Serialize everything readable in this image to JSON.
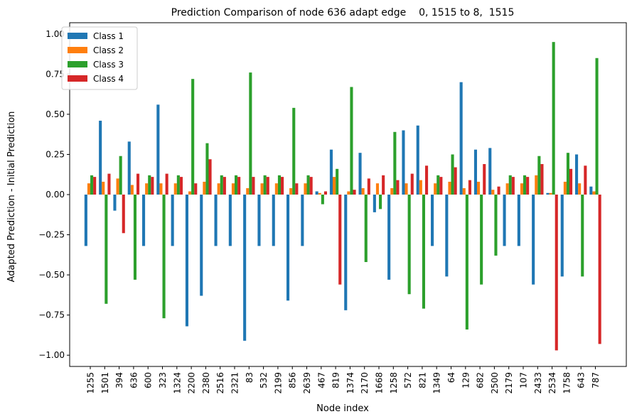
{
  "chart_data": {
    "type": "bar",
    "title": "Prediction Comparison of node 636 adapt edge    0, 1515 to 8,  1515",
    "xlabel": "Node index",
    "ylabel": "Adapted Prediction - Initial Prediction",
    "ylim": [
      -1.07,
      1.07
    ],
    "yticks": [
      "1.00",
      "0.75",
      "0.50",
      "0.25",
      "0.00",
      "−0.25",
      "−0.50",
      "−0.75",
      "−1.00"
    ],
    "ytick_values": [
      1.0,
      0.75,
      0.5,
      0.25,
      0.0,
      -0.25,
      -0.5,
      -0.75,
      -1.0
    ],
    "legend_position": "top-left",
    "categories": [
      "1255",
      "1501",
      "394",
      "636",
      "600",
      "323",
      "1324",
      "2200",
      "2380",
      "2516",
      "2321",
      "83",
      "532",
      "2199",
      "856",
      "2639",
      "467",
      "819",
      "1374",
      "2170",
      "1668",
      "1258",
      "572",
      "821",
      "1349",
      "64",
      "129",
      "682",
      "2500",
      "2179",
      "107",
      "2433",
      "2534",
      "1758",
      "643",
      "787"
    ],
    "series": [
      {
        "name": "Class 1",
        "color": "#1f77b4",
        "values": [
          -0.32,
          0.46,
          -0.1,
          0.33,
          -0.32,
          0.56,
          -0.32,
          -0.82,
          -0.63,
          -0.32,
          -0.32,
          -0.91,
          -0.32,
          -0.32,
          -0.66,
          -0.32,
          0.02,
          0.28,
          -0.72,
          0.26,
          -0.11,
          -0.53,
          0.4,
          0.43,
          -0.32,
          -0.51,
          0.7,
          0.28,
          0.29,
          -0.32,
          -0.32,
          -0.56,
          0.01,
          -0.51,
          0.25,
          0.05
        ]
      },
      {
        "name": "Class 2",
        "color": "#ff7f0e",
        "values": [
          0.07,
          0.08,
          0.1,
          0.06,
          0.07,
          0.07,
          0.07,
          0.02,
          0.08,
          0.07,
          0.07,
          0.04,
          0.07,
          0.07,
          0.04,
          0.07,
          0.01,
          0.11,
          0.02,
          0.04,
          0.07,
          0.04,
          0.07,
          0.09,
          0.07,
          0.08,
          0.04,
          0.08,
          0.03,
          0.07,
          0.07,
          0.12,
          0.01,
          0.08,
          0.07,
          0.02
        ]
      },
      {
        "name": "Class 3",
        "color": "#2ca02c",
        "values": [
          0.12,
          -0.68,
          0.24,
          -0.53,
          0.12,
          -0.77,
          0.12,
          0.72,
          0.32,
          0.12,
          0.12,
          0.76,
          0.12,
          0.12,
          0.54,
          0.12,
          -0.06,
          0.16,
          0.67,
          -0.42,
          -0.09,
          0.39,
          -0.62,
          -0.71,
          0.12,
          0.25,
          -0.84,
          -0.56,
          -0.38,
          0.12,
          0.12,
          0.24,
          0.95,
          0.26,
          -0.51,
          0.85
        ]
      },
      {
        "name": "Class 4",
        "color": "#d62728",
        "values": [
          0.11,
          0.13,
          -0.24,
          0.13,
          0.11,
          0.13,
          0.11,
          0.07,
          0.22,
          0.11,
          0.11,
          0.11,
          0.11,
          0.11,
          0.07,
          0.11,
          0.02,
          -0.56,
          0.03,
          0.1,
          0.12,
          0.09,
          0.13,
          0.18,
          0.11,
          0.17,
          0.09,
          0.19,
          0.05,
          0.11,
          0.11,
          0.19,
          -0.97,
          0.16,
          0.18,
          -0.93
        ]
      }
    ]
  }
}
